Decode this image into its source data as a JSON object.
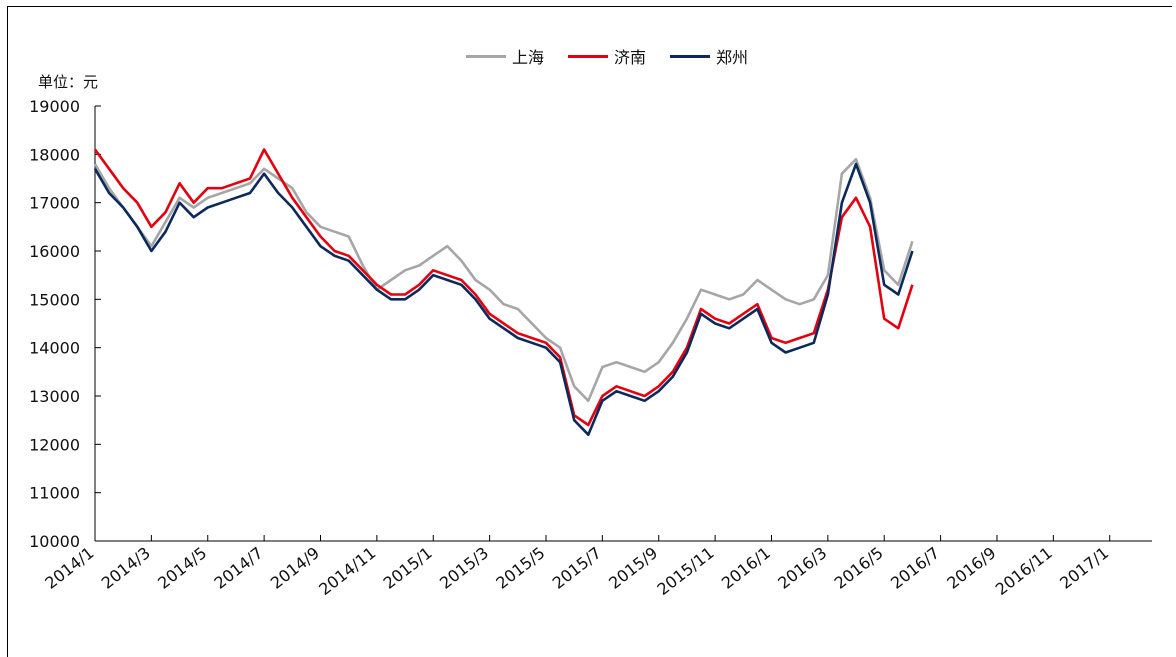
{
  "unit_label": "单位：元",
  "chart_data": {
    "type": "line",
    "ylim": [
      10000,
      19000
    ],
    "yticks": [
      10000,
      11000,
      12000,
      13000,
      14000,
      15000,
      16000,
      17000,
      18000,
      19000
    ],
    "xticks": [
      "2014/1",
      "2014/3",
      "2014/5",
      "2014/7",
      "2014/9",
      "2014/11",
      "2015/1",
      "2015/3",
      "2015/5",
      "2015/7",
      "2015/9",
      "2015/11",
      "2016/1",
      "2016/3",
      "2016/5",
      "2016/7",
      "2016/9",
      "2016/11",
      "2017/1"
    ],
    "legend_position": "top-center",
    "x_months": [
      0,
      1,
      2,
      3,
      4,
      5,
      6,
      7,
      8,
      9,
      10,
      11,
      12,
      13,
      14,
      15,
      16,
      17,
      18,
      19,
      20,
      21,
      22,
      23,
      24,
      25,
      26,
      27,
      28,
      29,
      30,
      31,
      32,
      33,
      34,
      35,
      36,
      37
    ],
    "series": [
      {
        "name": "上海",
        "color": "#a6a6a6",
        "values": [
          17800,
          17300,
          16900,
          16500,
          16100,
          16600,
          17100,
          16900,
          17100,
          17200,
          17300,
          17400,
          17700,
          17500,
          17300,
          16800,
          16500,
          16400,
          16300,
          15700,
          15200,
          15400,
          15600,
          15700,
          15900,
          16100,
          15800,
          15400,
          15200,
          14900,
          14800,
          14500,
          14200,
          14000,
          13200,
          12900,
          13600,
          13700,
          13600,
          13500,
          13700,
          14100,
          14600,
          15200,
          15100,
          15000,
          15100,
          15400,
          15200,
          15000,
          14900,
          15000,
          15500,
          17600,
          17900,
          17100,
          15600,
          15300,
          16200
        ],
        "x": [
          0,
          0.5,
          1,
          1.5,
          2,
          2.5,
          3,
          3.5,
          4,
          4.5,
          5,
          5.5,
          6,
          6.5,
          7,
          7.5,
          8,
          8.5,
          9,
          9.5,
          10,
          10.5,
          11,
          11.5,
          12,
          12.5,
          13,
          13.5,
          14,
          14.5,
          15,
          15.5,
          16,
          16.5,
          17,
          17.5,
          18,
          18.5,
          19,
          19.5,
          20,
          20.5,
          21,
          21.5,
          22,
          22.5,
          23,
          23.5,
          24,
          24.5,
          25,
          25.5,
          26,
          26.5,
          27,
          27.5,
          28,
          28.5,
          29
        ]
      },
      {
        "name": "济南",
        "color": "#e3000f",
        "values": [
          18100,
          17700,
          17300,
          17000,
          16500,
          16800,
          17400,
          17000,
          17300,
          17300,
          17400,
          17500,
          18100,
          17600,
          17100,
          16700,
          16300,
          16000,
          15900,
          15600,
          15300,
          15100,
          15100,
          15300,
          15600,
          15500,
          15400,
          15100,
          14700,
          14500,
          14300,
          14200,
          14100,
          13800,
          12600,
          12400,
          13000,
          13200,
          13100,
          13000,
          13200,
          13500,
          14000,
          14800,
          14600,
          14500,
          14700,
          14900,
          14200,
          14100,
          14200,
          14300,
          15200,
          16700,
          17100,
          16500,
          14600,
          14400,
          15300
        ],
        "x": [
          0,
          0.5,
          1,
          1.5,
          2,
          2.5,
          3,
          3.5,
          4,
          4.5,
          5,
          5.5,
          6,
          6.5,
          7,
          7.5,
          8,
          8.5,
          9,
          9.5,
          10,
          10.5,
          11,
          11.5,
          12,
          12.5,
          13,
          13.5,
          14,
          14.5,
          15,
          15.5,
          16,
          16.5,
          17,
          17.5,
          18,
          18.5,
          19,
          19.5,
          20,
          20.5,
          21,
          21.5,
          22,
          22.5,
          23,
          23.5,
          24,
          24.5,
          25,
          25.5,
          26,
          26.5,
          27,
          27.5,
          28,
          28.5,
          29
        ]
      },
      {
        "name": "郑州",
        "color": "#0b2a5b",
        "values": [
          17700,
          17200,
          16900,
          16500,
          16000,
          16400,
          17000,
          16700,
          16900,
          17000,
          17100,
          17200,
          17600,
          17200,
          16900,
          16500,
          16100,
          15900,
          15800,
          15500,
          15200,
          15000,
          15000,
          15200,
          15500,
          15400,
          15300,
          15000,
          14600,
          14400,
          14200,
          14100,
          14000,
          13700,
          12500,
          12200,
          12900,
          13100,
          13000,
          12900,
          13100,
          13400,
          13900,
          14700,
          14500,
          14400,
          14600,
          14800,
          14100,
          13900,
          14000,
          14100,
          15100,
          17000,
          17800,
          17000,
          15300,
          15100,
          16000
        ],
        "x": [
          0,
          0.5,
          1,
          1.5,
          2,
          2.5,
          3,
          3.5,
          4,
          4.5,
          5,
          5.5,
          6,
          6.5,
          7,
          7.5,
          8,
          8.5,
          9,
          9.5,
          10,
          10.5,
          11,
          11.5,
          12,
          12.5,
          13,
          13.5,
          14,
          14.5,
          15,
          15.5,
          16,
          16.5,
          17,
          17.5,
          18,
          18.5,
          19,
          19.5,
          20,
          20.5,
          21,
          21.5,
          22,
          22.5,
          23,
          23.5,
          24,
          24.5,
          25,
          25.5,
          26,
          26.5,
          27,
          27.5,
          28,
          28.5,
          29
        ]
      }
    ]
  }
}
